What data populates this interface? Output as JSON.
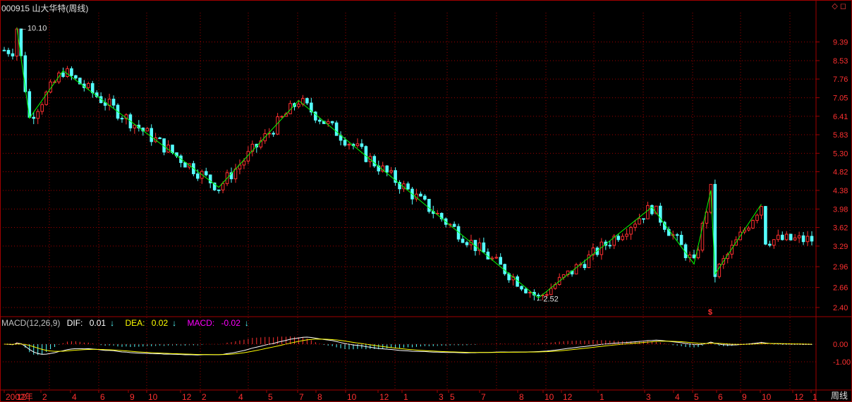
{
  "header": {
    "stock_code": "000915",
    "stock_name": "山大华特",
    "period": "(周线)",
    "window_icons": "◇ ◻"
  },
  "macd": {
    "params": "MACD(12,26,9)",
    "dif_label": "DIF:",
    "dif_value": "0.01",
    "dea_label": "DEA:",
    "dea_value": "0.02",
    "macd_label": "MACD:",
    "macd_value": "-0.02",
    "arrow": "↓",
    "y_ticks": [
      "0.00",
      "-1.00"
    ]
  },
  "bottom_bar": {
    "period_label": "周线"
  },
  "colors": {
    "up": "#ff3030",
    "down": "#54ffff",
    "zigzag": "#00ff00",
    "grid": "#a00000",
    "dif": "#ffffff",
    "dea": "#ffff00",
    "macd_label": "#ff00ff",
    "axis_text": "#ff3030"
  },
  "chart_data": {
    "type": "candlestick",
    "y_scale": "log",
    "price_axis_ticks": [
      9.39,
      8.53,
      7.76,
      7.05,
      6.41,
      5.83,
      5.3,
      4.82,
      4.38,
      3.98,
      3.62,
      3.29,
      2.96,
      2.66,
      2.4
    ],
    "x_ticks": [
      "2002年",
      "12",
      "2",
      "4",
      "6",
      "9",
      "10",
      "12",
      "2",
      "4",
      "5",
      "7",
      "8",
      "10",
      "12",
      "1",
      "3",
      "5",
      "7",
      "8",
      "10",
      "12",
      "1",
      "3",
      "4",
      "5",
      "6",
      "9",
      "10",
      "12",
      "1"
    ],
    "annotations": [
      {
        "text": "10.10",
        "kind": "high"
      },
      {
        "text": "2.52",
        "kind": "low"
      },
      {
        "text": "$",
        "kind": "marker"
      }
    ],
    "zigzag_points": [
      {
        "week": 3,
        "price": 10.1
      },
      {
        "week": 6,
        "price": 6.35
      },
      {
        "week": 14,
        "price": 8.1
      },
      {
        "week": 51,
        "price": 4.45
      },
      {
        "week": 70,
        "price": 6.95
      },
      {
        "week": 127,
        "price": 2.52
      },
      {
        "week": 154,
        "price": 4.02
      },
      {
        "week": 164,
        "price": 3.0
      },
      {
        "week": 168,
        "price": 4.38
      },
      {
        "week": 169,
        "price": 2.85
      },
      {
        "week": 180,
        "price": 4.08
      }
    ],
    "grid": true
  }
}
